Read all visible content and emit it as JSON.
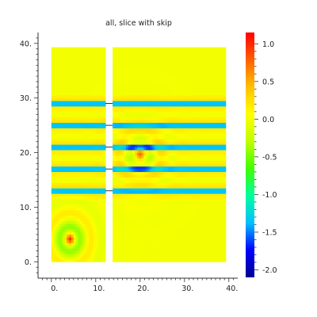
{
  "chart_data": {
    "type": "heatmap",
    "title": "all, slice with skip",
    "xlabel": "",
    "ylabel": "",
    "xlim": [
      -3,
      42
    ],
    "ylim": [
      -3,
      42
    ],
    "x_ticks": [
      "0.",
      "10.",
      "20.",
      "30.",
      "40."
    ],
    "x_tick_values": [
      0,
      10,
      20,
      30,
      40
    ],
    "y_ticks": [
      "0.",
      "10.",
      "20.",
      "30.",
      "40."
    ],
    "y_tick_values": [
      0,
      10,
      20,
      30,
      40
    ],
    "colorbar": {
      "range": [
        -2.1,
        1.15
      ],
      "ticks": [
        "1.0",
        "0.5",
        "0.0",
        "-0.5",
        "-1.0",
        "-1.5",
        "-2.0"
      ],
      "tick_values": [
        1.0,
        0.5,
        0.0,
        -0.5,
        -1.0,
        -1.5,
        -2.0
      ],
      "colors": [
        "#000090",
        "#0000ff",
        "#00c0ff",
        "#00ffa0",
        "#40ff00",
        "#c0ff00",
        "#ffff00",
        "#ffc000",
        "#ff6000",
        "#ff0000"
      ]
    },
    "panels": [
      {
        "x_range": [
          0,
          12.2
        ],
        "y_range": [
          0,
          39.3
        ]
      },
      {
        "x_range": [
          13.8,
          39.3
        ],
        "y_range": [
          0,
          39.3
        ]
      }
    ],
    "bands_y": [
      13,
      17,
      21,
      25,
      29
    ],
    "blobs": [
      {
        "x": 4.2,
        "y": 4.2,
        "peak": 1.0
      },
      {
        "x": 20.0,
        "y": 19.6,
        "peak": 0.7
      }
    ],
    "grid": false,
    "colormap": "jet-like"
  }
}
